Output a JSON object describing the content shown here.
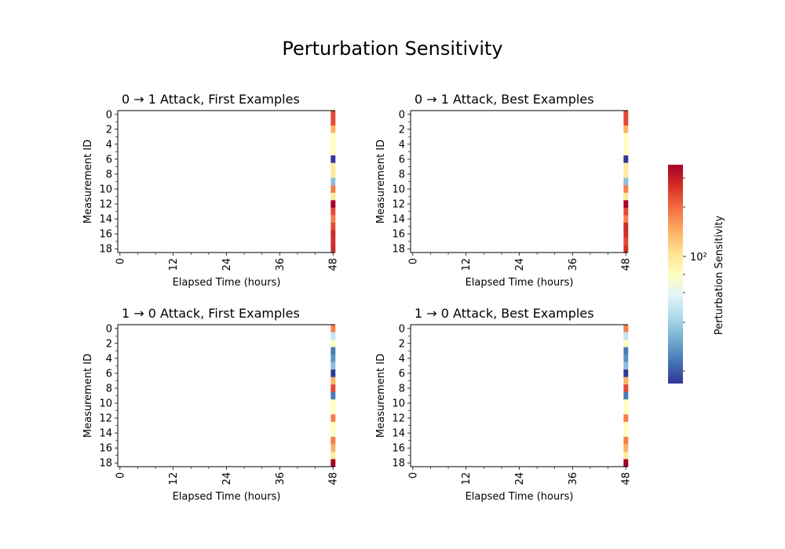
{
  "title": "Perturbation Sensitivity",
  "colorbar": {
    "label": "Perturbation Sensitivity",
    "tick_label": "10²",
    "scale": "log",
    "colormap": "RdYlBu_r",
    "low_color": "#313695",
    "high_color": "#a50026"
  },
  "chart_data": [
    {
      "type": "heatmap",
      "title": "0 → 1 Attack, First Examples",
      "xlabel": "Elapsed Time (hours)",
      "ylabel": "Measurement ID",
      "x_ticks": [
        "0",
        "12",
        "24",
        "36",
        "48"
      ],
      "y_ticks": [
        "0",
        "2",
        "4",
        "6",
        "8",
        "10",
        "12",
        "14",
        "16",
        "18"
      ],
      "xlim": [
        0,
        48
      ],
      "rows": 19,
      "nonempty_column": 48,
      "last_column_colors": [
        "#e34933",
        "#e34933",
        "#fdb163",
        "#fffebe",
        "#fffebe",
        "#fffebe",
        "#313695",
        "#fee99d",
        "#fee99d",
        "#8ac0db",
        "#f67f4b",
        "#fee99d",
        "#a50026",
        "#e34933",
        "#f67f4b",
        "#e34933",
        "#c62d2d",
        "#d73027",
        "#c62d2d"
      ]
    },
    {
      "type": "heatmap",
      "title": "0 → 1 Attack, Best Examples",
      "xlabel": "Elapsed Time (hours)",
      "ylabel": "Measurement ID",
      "x_ticks": [
        "0",
        "12",
        "24",
        "36",
        "48"
      ],
      "y_ticks": [
        "0",
        "2",
        "4",
        "6",
        "8",
        "10",
        "12",
        "14",
        "16",
        "18"
      ],
      "xlim": [
        0,
        48
      ],
      "rows": 19,
      "nonempty_column": 48,
      "last_column_colors": [
        "#e34933",
        "#e34933",
        "#fdb163",
        "#fffebe",
        "#fffebe",
        "#fffebe",
        "#313695",
        "#fee99d",
        "#fee99d",
        "#8ac0db",
        "#f67f4b",
        "#fee99d",
        "#a50026",
        "#e34933",
        "#f67f4b",
        "#c62d2d",
        "#d73027",
        "#e34933",
        "#d73027"
      ]
    },
    {
      "type": "heatmap",
      "title": "1 → 0 Attack, First Examples",
      "xlabel": "Elapsed Time (hours)",
      "ylabel": "Measurement ID",
      "x_ticks": [
        "0",
        "12",
        "24",
        "36",
        "48"
      ],
      "y_ticks": [
        "0",
        "2",
        "4",
        "6",
        "8",
        "10",
        "12",
        "14",
        "16",
        "18"
      ],
      "xlim": [
        0,
        48
      ],
      "rows": 19,
      "nonempty_column": 48,
      "last_column_colors": [
        "#f67f4b",
        "#c4e5f0",
        "#fffebe",
        "#4a7ab7",
        "#5b95c5",
        "#8ac0db",
        "#313695",
        "#fdb163",
        "#e34933",
        "#4a7ab7",
        "#fffebe",
        "#fffebe",
        "#f67f4b",
        "#fffebe",
        "#fffebe",
        "#f67f4b",
        "#fdb163",
        "#fee99d",
        "#a50026"
      ]
    },
    {
      "type": "heatmap",
      "title": "1 → 0 Attack, Best Examples",
      "xlabel": "Elapsed Time (hours)",
      "ylabel": "Measurement ID",
      "x_ticks": [
        "0",
        "12",
        "24",
        "36",
        "48"
      ],
      "y_ticks": [
        "0",
        "2",
        "4",
        "6",
        "8",
        "10",
        "12",
        "14",
        "16",
        "18"
      ],
      "xlim": [
        0,
        48
      ],
      "rows": 19,
      "nonempty_column": 48,
      "last_column_colors": [
        "#f67f4b",
        "#c4e5f0",
        "#fffebe",
        "#4a7ab7",
        "#5b95c5",
        "#8ac0db",
        "#313695",
        "#fdb163",
        "#e34933",
        "#4a7ab7",
        "#fffebe",
        "#fffebe",
        "#f67f4b",
        "#fffebe",
        "#fffebe",
        "#f67f4b",
        "#fdb163",
        "#fee99d",
        "#a50026"
      ]
    }
  ]
}
